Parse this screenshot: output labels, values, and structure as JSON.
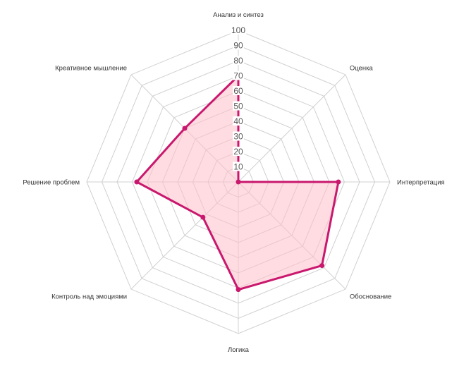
{
  "chart_data": {
    "type": "radar",
    "axes": [
      "Анализ и синтез",
      "Оценка",
      "Интерпретация",
      "Обоснование",
      "Логика",
      "Контроль над эмоциями",
      "Решение проблем",
      "Креативное мышление"
    ],
    "series": [
      {
        "values": [
          70,
          0,
          66,
          78,
          71,
          33,
          67,
          50
        ],
        "color": "#c9186e",
        "fill": "#ffc0cb"
      }
    ],
    "rlim": [
      0,
      100
    ],
    "ticks": [
      "10",
      "20",
      "30",
      "40",
      "50",
      "60",
      "70",
      "80",
      "90",
      "100"
    ],
    "grid": true
  }
}
